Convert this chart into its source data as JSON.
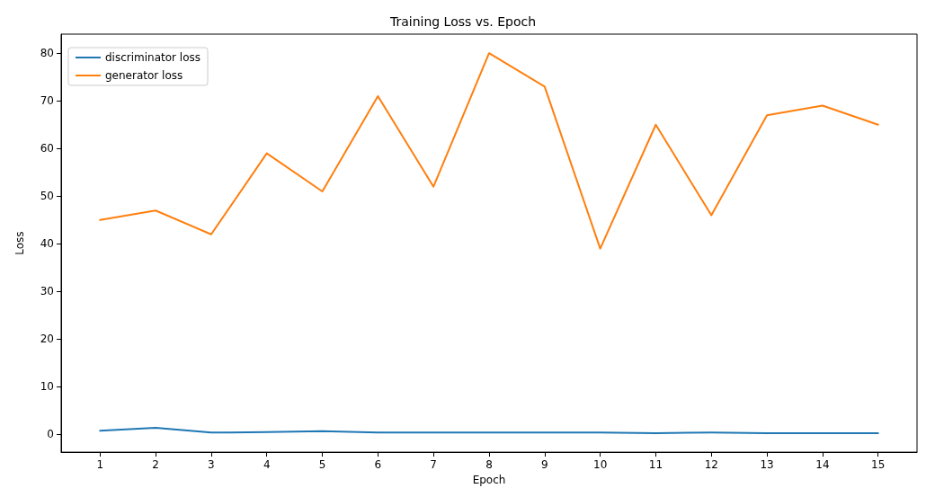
{
  "chart_data": {
    "type": "line",
    "title": "Training Loss vs. Epoch",
    "xlabel": "Epoch",
    "ylabel": "Loss",
    "x": [
      1,
      2,
      3,
      4,
      5,
      6,
      7,
      8,
      9,
      10,
      11,
      12,
      13,
      14,
      15
    ],
    "series": [
      {
        "name": "discriminator loss",
        "color": "#1f77b4",
        "values": [
          0.8,
          1.4,
          0.4,
          0.5,
          0.7,
          0.4,
          0.4,
          0.4,
          0.4,
          0.4,
          0.3,
          0.4,
          0.3,
          0.3,
          0.3
        ]
      },
      {
        "name": "generator loss",
        "color": "#ff7f0e",
        "values": [
          45,
          47,
          42,
          59,
          51,
          71,
          52,
          80,
          73,
          39,
          65,
          46,
          67,
          69,
          65
        ]
      }
    ],
    "xlim": [
      0.3,
      15.7
    ],
    "xticks": [
      1,
      2,
      3,
      4,
      5,
      6,
      7,
      8,
      9,
      10,
      11,
      12,
      13,
      14,
      15
    ],
    "ylim": [
      -3.7,
      84
    ],
    "yticks": [
      0,
      10,
      20,
      30,
      40,
      50,
      60,
      70,
      80
    ],
    "grid": false,
    "legend": "top left",
    "marker": "none",
    "line_style": "solid"
  }
}
